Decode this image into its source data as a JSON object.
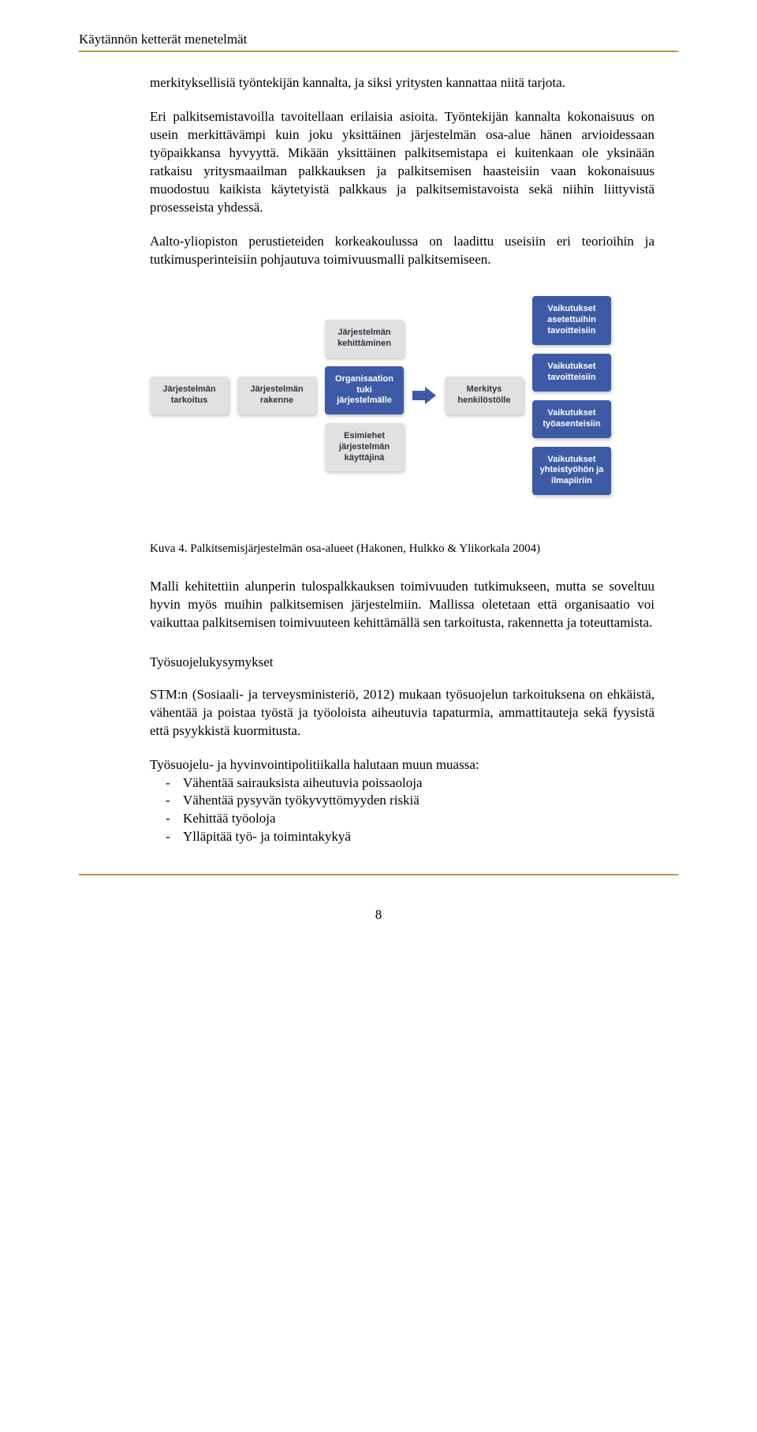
{
  "header": {
    "title": "Käytännön ketterät menetelmät"
  },
  "paragraphs": {
    "p1": "merkityksellisiä työntekijän kannalta, ja siksi yritysten kannattaa niitä tarjota.",
    "p2": "Eri palkitsemistavoilla tavoitellaan erilaisia asioita. Työntekijän kannalta kokonaisuus on usein merkittävämpi kuin joku yksittäinen järjestelmän osa-alue hänen arvioidessaan työpaikkansa hyvyyttä. Mikään yksittäinen palkitsemistapa ei kuitenkaan ole yksinään ratkaisu yritysmaailman palkkauksen ja palkitsemisen haasteisiin vaan kokonaisuus muodostuu kaikista käytetyistä palkkaus ja palkitsemistavoista sekä niihin liittyvistä prosesseista yhdessä.",
    "p3": "Aalto-yliopiston perustieteiden korkeakoulussa on laadittu useisiin eri teorioihin ja tutkimusperinteisiin pohjautuva toimivuusmalli palkitsemiseen.",
    "p4_caption": "Kuva 4. Palkitsemisjärjestelmän osa-alueet (Hakonen, Hulkko & Ylikorkala 2004)",
    "p5": "Malli kehitettiin alunperin tulospalkkauksen toimivuuden tutkimukseen, mutta se soveltuu hyvin myös muihin palkitsemisen järjestelmiin. Mallissa oletetaan että organisaatio voi vaikuttaa palkitsemisen toimivuuteen kehittämällä sen tarkoitusta, rakennetta ja toteuttamista.",
    "subheading": "Työsuojelukysymykset",
    "p6": "STM:n (Sosiaali- ja terveysministeriö, 2012) mukaan työsuojelun tarkoituksena on ehkäistä, vähentää ja poistaa työstä ja työoloista aiheutuvia tapaturmia, ammattitauteja sekä fyysistä että psyykkistä kuormitusta.",
    "p7_intro": "Työsuojelu- ja hyvinvointipolitiikalla halutaan muun muassa:",
    "list": [
      "Vähentää sairauksista aiheutuvia poissaoloja",
      "Vähentää pysyvän työkyvyttömyyden riskiä",
      "Kehittää työoloja",
      "Ylläpitää työ- ja toimintakykyä"
    ]
  },
  "diagram": {
    "nodes": {
      "n1": "Järjestelmän tarkoitus",
      "n2": "Järjestelmän rakenne",
      "n3": "Järjestelmän kehittäminen",
      "n4": "Organisaation tuki järjestelmälle",
      "n5": "Esimiehet järjestelmän käyttäjinä",
      "n6": "Merkitys henkilöstölle",
      "n7": "Vaikutukset asetettuihin tavoitteisiin",
      "n8": "Vaikutukset tavoitteisiin",
      "n9": "Vaikutukset työasenteisiin",
      "n10": "Vaikutukset yhteistyöhön ja ilmapiiriin"
    },
    "colors": {
      "gray_bg": "#e1e1e1",
      "gray_text": "#333344",
      "blue_bg": "#3c5aa6",
      "blue_text": "#ffffff"
    },
    "font_family": "Arial",
    "font_size_pt": 8,
    "font_weight": "bold",
    "node_border_radius": 4,
    "shadow": "1px 2px 4px rgba(0,0,0,0.25)"
  },
  "pagenum": "8",
  "rule_color": "#c0943c"
}
